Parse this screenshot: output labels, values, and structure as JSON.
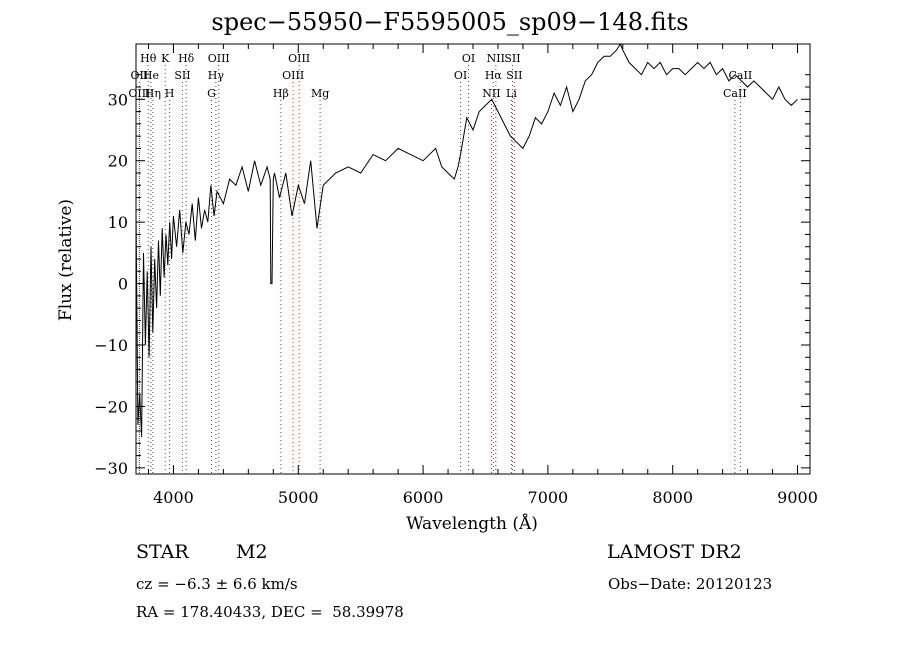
{
  "chart_data": {
    "type": "line",
    "title": "spec−55950−F5595005_sp09−148.fits",
    "xlabel": "Wavelength (Å)",
    "ylabel": "Flux (relative)",
    "xlim": [
      3700,
      9100
    ],
    "ylim": [
      -31,
      39
    ],
    "xticks": [
      4000,
      5000,
      6000,
      7000,
      8000,
      9000
    ],
    "yticks": [
      -30,
      -20,
      -10,
      0,
      10,
      20,
      30
    ],
    "ytick_labels": [
      "−30",
      "−20",
      "−10",
      "0",
      "10",
      "20",
      "30"
    ],
    "grid": false,
    "series": [
      {
        "x": [
          3700,
          3715,
          3730,
          3745,
          3760,
          3775,
          3790,
          3805,
          3820,
          3835,
          3850,
          3865,
          3880,
          3895,
          3910,
          3925,
          3940,
          3955,
          3970,
          3985,
          4000,
          4025,
          4050,
          4075,
          4100,
          4125,
          4150,
          4175,
          4200,
          4225,
          4250,
          4275,
          4300,
          4325,
          4350,
          4400,
          4450,
          4500,
          4550,
          4600,
          4650,
          4700,
          4750,
          4775,
          4780,
          4790,
          4800,
          4810,
          4850,
          4900,
          4950,
          5000,
          5050,
          5100,
          5150,
          5200,
          5250,
          5300,
          5400,
          5500,
          5600,
          5700,
          5800,
          5900,
          6000,
          6100,
          6150,
          6200,
          6250,
          6280,
          6300,
          6350,
          6400,
          6450,
          6500,
          6550,
          6600,
          6650,
          6700,
          6750,
          6800,
          6850,
          6900,
          6950,
          7000,
          7050,
          7100,
          7150,
          7200,
          7250,
          7300,
          7350,
          7400,
          7450,
          7500,
          7550,
          7580,
          7600,
          7650,
          7700,
          7750,
          7800,
          7850,
          7900,
          7950,
          8000,
          8050,
          8100,
          8150,
          8200,
          8250,
          8300,
          8350,
          8400,
          8450,
          8500,
          8550,
          8600,
          8650,
          8700,
          8750,
          8800,
          8850,
          8900,
          8950,
          9000
        ],
        "y": [
          12,
          -23,
          -18,
          -25,
          5,
          -10,
          2,
          -12,
          6,
          -8,
          4,
          -4,
          7,
          -2,
          9,
          1,
          8,
          3,
          10,
          4,
          11,
          6,
          12,
          5,
          10,
          8,
          13,
          7,
          14,
          9,
          12,
          10,
          16,
          11,
          15,
          13,
          17,
          16,
          19,
          15,
          20,
          16,
          19,
          17,
          0,
          0,
          17,
          18,
          14,
          18,
          11,
          16,
          13,
          20,
          9,
          16,
          17,
          18,
          19,
          18,
          21,
          20,
          22,
          21,
          20,
          22,
          19,
          18,
          17,
          19,
          21,
          27,
          25,
          28,
          29,
          30,
          28,
          26,
          24,
          23,
          22,
          24,
          27,
          26,
          28,
          31,
          29,
          32,
          28,
          30,
          33,
          34,
          36,
          37,
          37,
          38,
          39,
          38,
          36,
          35,
          34,
          36,
          35,
          36,
          34,
          35,
          35,
          34,
          35,
          36,
          35,
          36,
          34,
          35,
          33,
          34,
          33,
          32,
          33,
          32,
          31,
          30,
          32,
          30,
          29,
          30
        ]
      }
    ],
    "line_markers": [
      {
        "label": "Hθ",
        "x": 3798,
        "row": 0,
        "color": "#444444"
      },
      {
        "label": "OII",
        "x": 3727,
        "row": 1,
        "color": "#444444"
      },
      {
        "label": "OIII",
        "x": 3727,
        "row": 2,
        "color": "#444444"
      },
      {
        "label": "He",
        "x": 3820,
        "row": 1,
        "color": "#444444"
      },
      {
        "label": "Hη",
        "x": 3835,
        "row": 2,
        "color": "#444444"
      },
      {
        "label": "K",
        "x": 3934,
        "row": 0,
        "color": "#444444"
      },
      {
        "label": "H",
        "x": 3969,
        "row": 2,
        "color": "#444444"
      },
      {
        "label": "SII",
        "x": 4072,
        "row": 1,
        "color": "#aa2222"
      },
      {
        "label": "Hδ",
        "x": 4102,
        "row": 0,
        "color": "#444444"
      },
      {
        "label": "OIII",
        "x": 4363,
        "row": 0,
        "color": "#444444"
      },
      {
        "label": "Hγ",
        "x": 4340,
        "row": 1,
        "color": "#444444"
      },
      {
        "label": "G",
        "x": 4305,
        "row": 2,
        "color": "#444444"
      },
      {
        "label": "Hβ",
        "x": 4861,
        "row": 2,
        "color": "#aa2222"
      },
      {
        "label": "OIII",
        "x": 5007,
        "row": 0,
        "color": "#aa2222"
      },
      {
        "label": "OIII",
        "x": 4959,
        "row": 1,
        "color": "#aa2222"
      },
      {
        "label": "Mg",
        "x": 5175,
        "row": 2,
        "color": "#aa2222"
      },
      {
        "label": "OI",
        "x": 6364,
        "row": 0,
        "color": "#444444"
      },
      {
        "label": "OI",
        "x": 6300,
        "row": 1,
        "color": "#444444"
      },
      {
        "label": "NII",
        "x": 6583,
        "row": 0,
        "color": "#444444"
      },
      {
        "label": "SII",
        "x": 6716,
        "row": 0,
        "color": "#aa2222"
      },
      {
        "label": "Hα",
        "x": 6563,
        "row": 1,
        "color": "#aa2222"
      },
      {
        "label": "SII",
        "x": 6731,
        "row": 1,
        "color": "#aa2222"
      },
      {
        "label": "NII",
        "x": 6548,
        "row": 2,
        "color": "#aa2222"
      },
      {
        "label": "Li",
        "x": 6708,
        "row": 2,
        "color": "#aa2222"
      },
      {
        "label": "CaII",
        "x": 8542,
        "row": 1,
        "color": "#aa2222"
      },
      {
        "label": "CaII",
        "x": 8498,
        "row": 2,
        "color": "#aa2222"
      }
    ],
    "colors": {
      "line": "#000000",
      "marker_default": "#444444",
      "marker_red": "#aa2222"
    }
  },
  "info": {
    "object_type": "STAR",
    "subclass": "M2",
    "survey": "LAMOST DR2",
    "cz": "cz = −6.3 ± 6.6 km/s",
    "obs_date": "Obs−Date: 20120123",
    "coords": "RA = 178.40433, DEC =  58.39978"
  }
}
